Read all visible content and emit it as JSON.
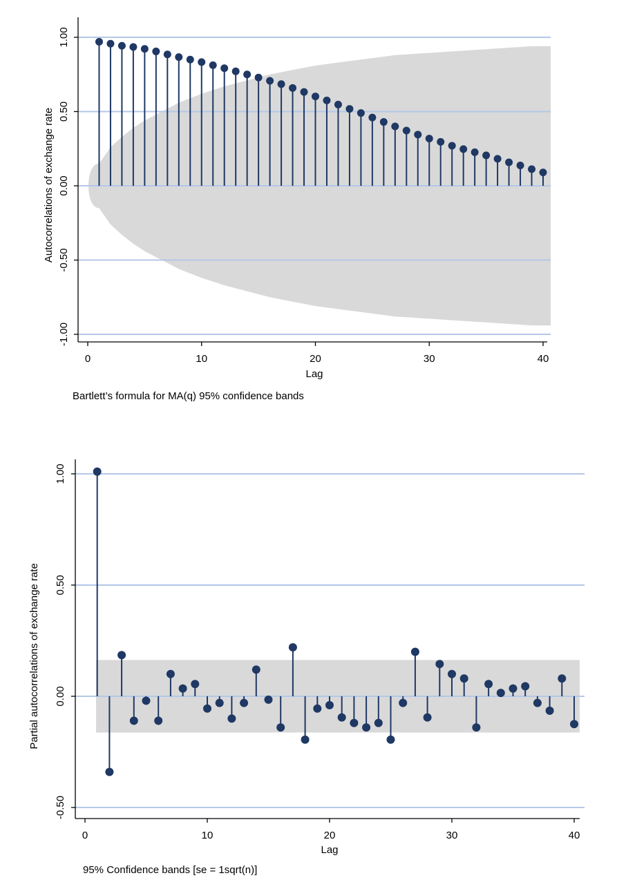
{
  "colors": {
    "marker": "#1f3864",
    "gridline": "#b4c7e7",
    "band": "#d9d9d9",
    "axis": "#000000"
  },
  "chart_data": [
    {
      "type": "stem",
      "title": "",
      "xlabel": "Lag",
      "ylabel": "Autocorrelations of exchange rate",
      "note": "Bartlett’s formula for MA(q) 95% confidence bands",
      "xlim": [
        0,
        40
      ],
      "ylim": [
        -1.0,
        1.0
      ],
      "x_ticks": [
        0,
        10,
        20,
        30,
        40
      ],
      "y_ticks": [
        -1.0,
        -0.5,
        0.0,
        0.5,
        1.0
      ],
      "y_tick_labels": [
        "-1.00",
        "-0.50",
        "0.00",
        "0.50",
        "1.00"
      ],
      "grid": true,
      "confidence_band": "bartlett",
      "confidence_band_upper": [
        0.15,
        0.26,
        0.33,
        0.39,
        0.44,
        0.48,
        0.52,
        0.56,
        0.59,
        0.62,
        0.645,
        0.67,
        0.69,
        0.71,
        0.73,
        0.75,
        0.765,
        0.78,
        0.795,
        0.81,
        0.82,
        0.83,
        0.84,
        0.85,
        0.86,
        0.87,
        0.88,
        0.885,
        0.89,
        0.895,
        0.9,
        0.905,
        0.91,
        0.915,
        0.92,
        0.925,
        0.93,
        0.935,
        0.94,
        0.94
      ],
      "x": [
        1,
        2,
        3,
        4,
        5,
        6,
        7,
        8,
        9,
        10,
        11,
        12,
        13,
        14,
        15,
        16,
        17,
        18,
        19,
        20,
        21,
        22,
        23,
        24,
        25,
        26,
        27,
        28,
        29,
        30,
        31,
        32,
        33,
        34,
        35,
        36,
        37,
        38,
        39,
        40
      ],
      "values": [
        0.97,
        0.957,
        0.943,
        0.935,
        0.922,
        0.905,
        0.885,
        0.867,
        0.85,
        0.833,
        0.812,
        0.792,
        0.771,
        0.75,
        0.729,
        0.707,
        0.685,
        0.659,
        0.632,
        0.602,
        0.575,
        0.547,
        0.518,
        0.49,
        0.46,
        0.43,
        0.4,
        0.372,
        0.345,
        0.318,
        0.296,
        0.27,
        0.247,
        0.226,
        0.205,
        0.182,
        0.158,
        0.137,
        0.112,
        0.09
      ]
    },
    {
      "type": "stem",
      "title": "",
      "xlabel": "Lag",
      "ylabel": "Partial autocorrelations of exchange rate",
      "note": "95% Confidence bands [se = 1sqrt(n)]",
      "xlim": [
        0,
        40
      ],
      "ylim": [
        -0.5,
        1.0
      ],
      "x_ticks": [
        0,
        10,
        20,
        30,
        40
      ],
      "y_ticks": [
        -0.5,
        0.0,
        0.5,
        1.0
      ],
      "y_tick_labels": [
        "-0.50",
        "0.00",
        "0.50",
        "1.00"
      ],
      "grid": true,
      "confidence_band": "constant",
      "confidence_band_limits": [
        -0.163,
        0.163
      ],
      "x": [
        1,
        2,
        3,
        4,
        5,
        6,
        7,
        8,
        9,
        10,
        11,
        12,
        13,
        14,
        15,
        16,
        17,
        18,
        19,
        20,
        21,
        22,
        23,
        24,
        25,
        26,
        27,
        28,
        29,
        30,
        31,
        32,
        33,
        34,
        35,
        36,
        37,
        38,
        39,
        40
      ],
      "values": [
        1.01,
        -0.34,
        0.185,
        -0.11,
        -0.02,
        -0.11,
        0.1,
        0.035,
        0.055,
        -0.055,
        -0.03,
        -0.1,
        -0.03,
        0.12,
        -0.015,
        -0.14,
        0.22,
        -0.195,
        -0.055,
        -0.04,
        -0.095,
        -0.12,
        -0.14,
        -0.12,
        -0.195,
        -0.03,
        0.2,
        -0.095,
        0.145,
        0.1,
        0.08,
        -0.14,
        0.055,
        0.015,
        0.035,
        0.045,
        -0.03,
        -0.065,
        0.08,
        -0.125
      ]
    }
  ]
}
